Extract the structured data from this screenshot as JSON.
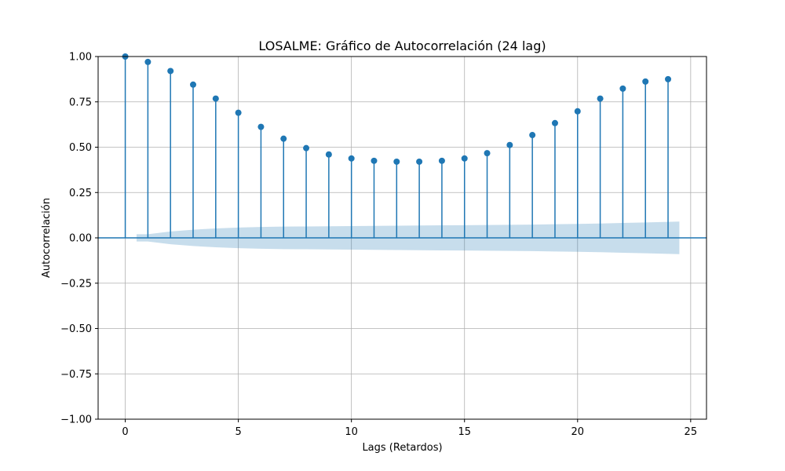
{
  "chart_data": {
    "type": "stem",
    "title": "LOSALME: Gráfico de Autocorrelación (24 lag)",
    "xlabel": "Lags (Retardos)",
    "ylabel": "Autocorrelación",
    "xlim": [
      -1.2,
      25.7
    ],
    "ylim": [
      -1.0,
      1.0
    ],
    "x_ticks": [
      0,
      5,
      10,
      15,
      20,
      25
    ],
    "y_ticks": [
      -1.0,
      -0.75,
      -0.5,
      -0.25,
      0.0,
      0.25,
      0.5,
      0.75,
      1.0
    ],
    "x_tick_labels": [
      "0",
      "5",
      "10",
      "15",
      "20",
      "25"
    ],
    "y_tick_labels": [
      "−1.00",
      "−0.75",
      "−0.50",
      "−0.25",
      "0.00",
      "0.25",
      "0.50",
      "0.75",
      "1.00"
    ],
    "grid": true,
    "lags": [
      0,
      1,
      2,
      3,
      4,
      5,
      6,
      7,
      8,
      9,
      10,
      11,
      12,
      13,
      14,
      15,
      16,
      17,
      18,
      19,
      20,
      21,
      22,
      23,
      24
    ],
    "values": [
      1.0,
      0.97,
      0.92,
      0.845,
      0.768,
      0.69,
      0.612,
      0.547,
      0.495,
      0.46,
      0.438,
      0.425,
      0.42,
      0.42,
      0.425,
      0.438,
      0.467,
      0.512,
      0.567,
      0.633,
      0.698,
      0.768,
      0.823,
      0.862,
      0.875
    ],
    "confidence_band": {
      "x": [
        0.5,
        1,
        2,
        3,
        4,
        5,
        6,
        7,
        8,
        9,
        10,
        11,
        12,
        13,
        14,
        15,
        16,
        17,
        18,
        19,
        20,
        21,
        22,
        23,
        24,
        24.5
      ],
      "upper": [
        0.02,
        0.02,
        0.035,
        0.045,
        0.052,
        0.057,
        0.06,
        0.062,
        0.063,
        0.064,
        0.065,
        0.066,
        0.067,
        0.068,
        0.069,
        0.07,
        0.071,
        0.072,
        0.073,
        0.075,
        0.077,
        0.079,
        0.082,
        0.085,
        0.088,
        0.09
      ],
      "lower": [
        -0.02,
        -0.02,
        -0.035,
        -0.045,
        -0.052,
        -0.057,
        -0.06,
        -0.062,
        -0.063,
        -0.064,
        -0.065,
        -0.066,
        -0.067,
        -0.068,
        -0.069,
        -0.07,
        -0.071,
        -0.072,
        -0.073,
        -0.075,
        -0.077,
        -0.079,
        -0.082,
        -0.085,
        -0.088,
        -0.09
      ]
    },
    "colors": {
      "stem": "#1f77b4",
      "band": "#1f77b4",
      "grid": "#b0b0b0",
      "axis": "#000000"
    }
  }
}
